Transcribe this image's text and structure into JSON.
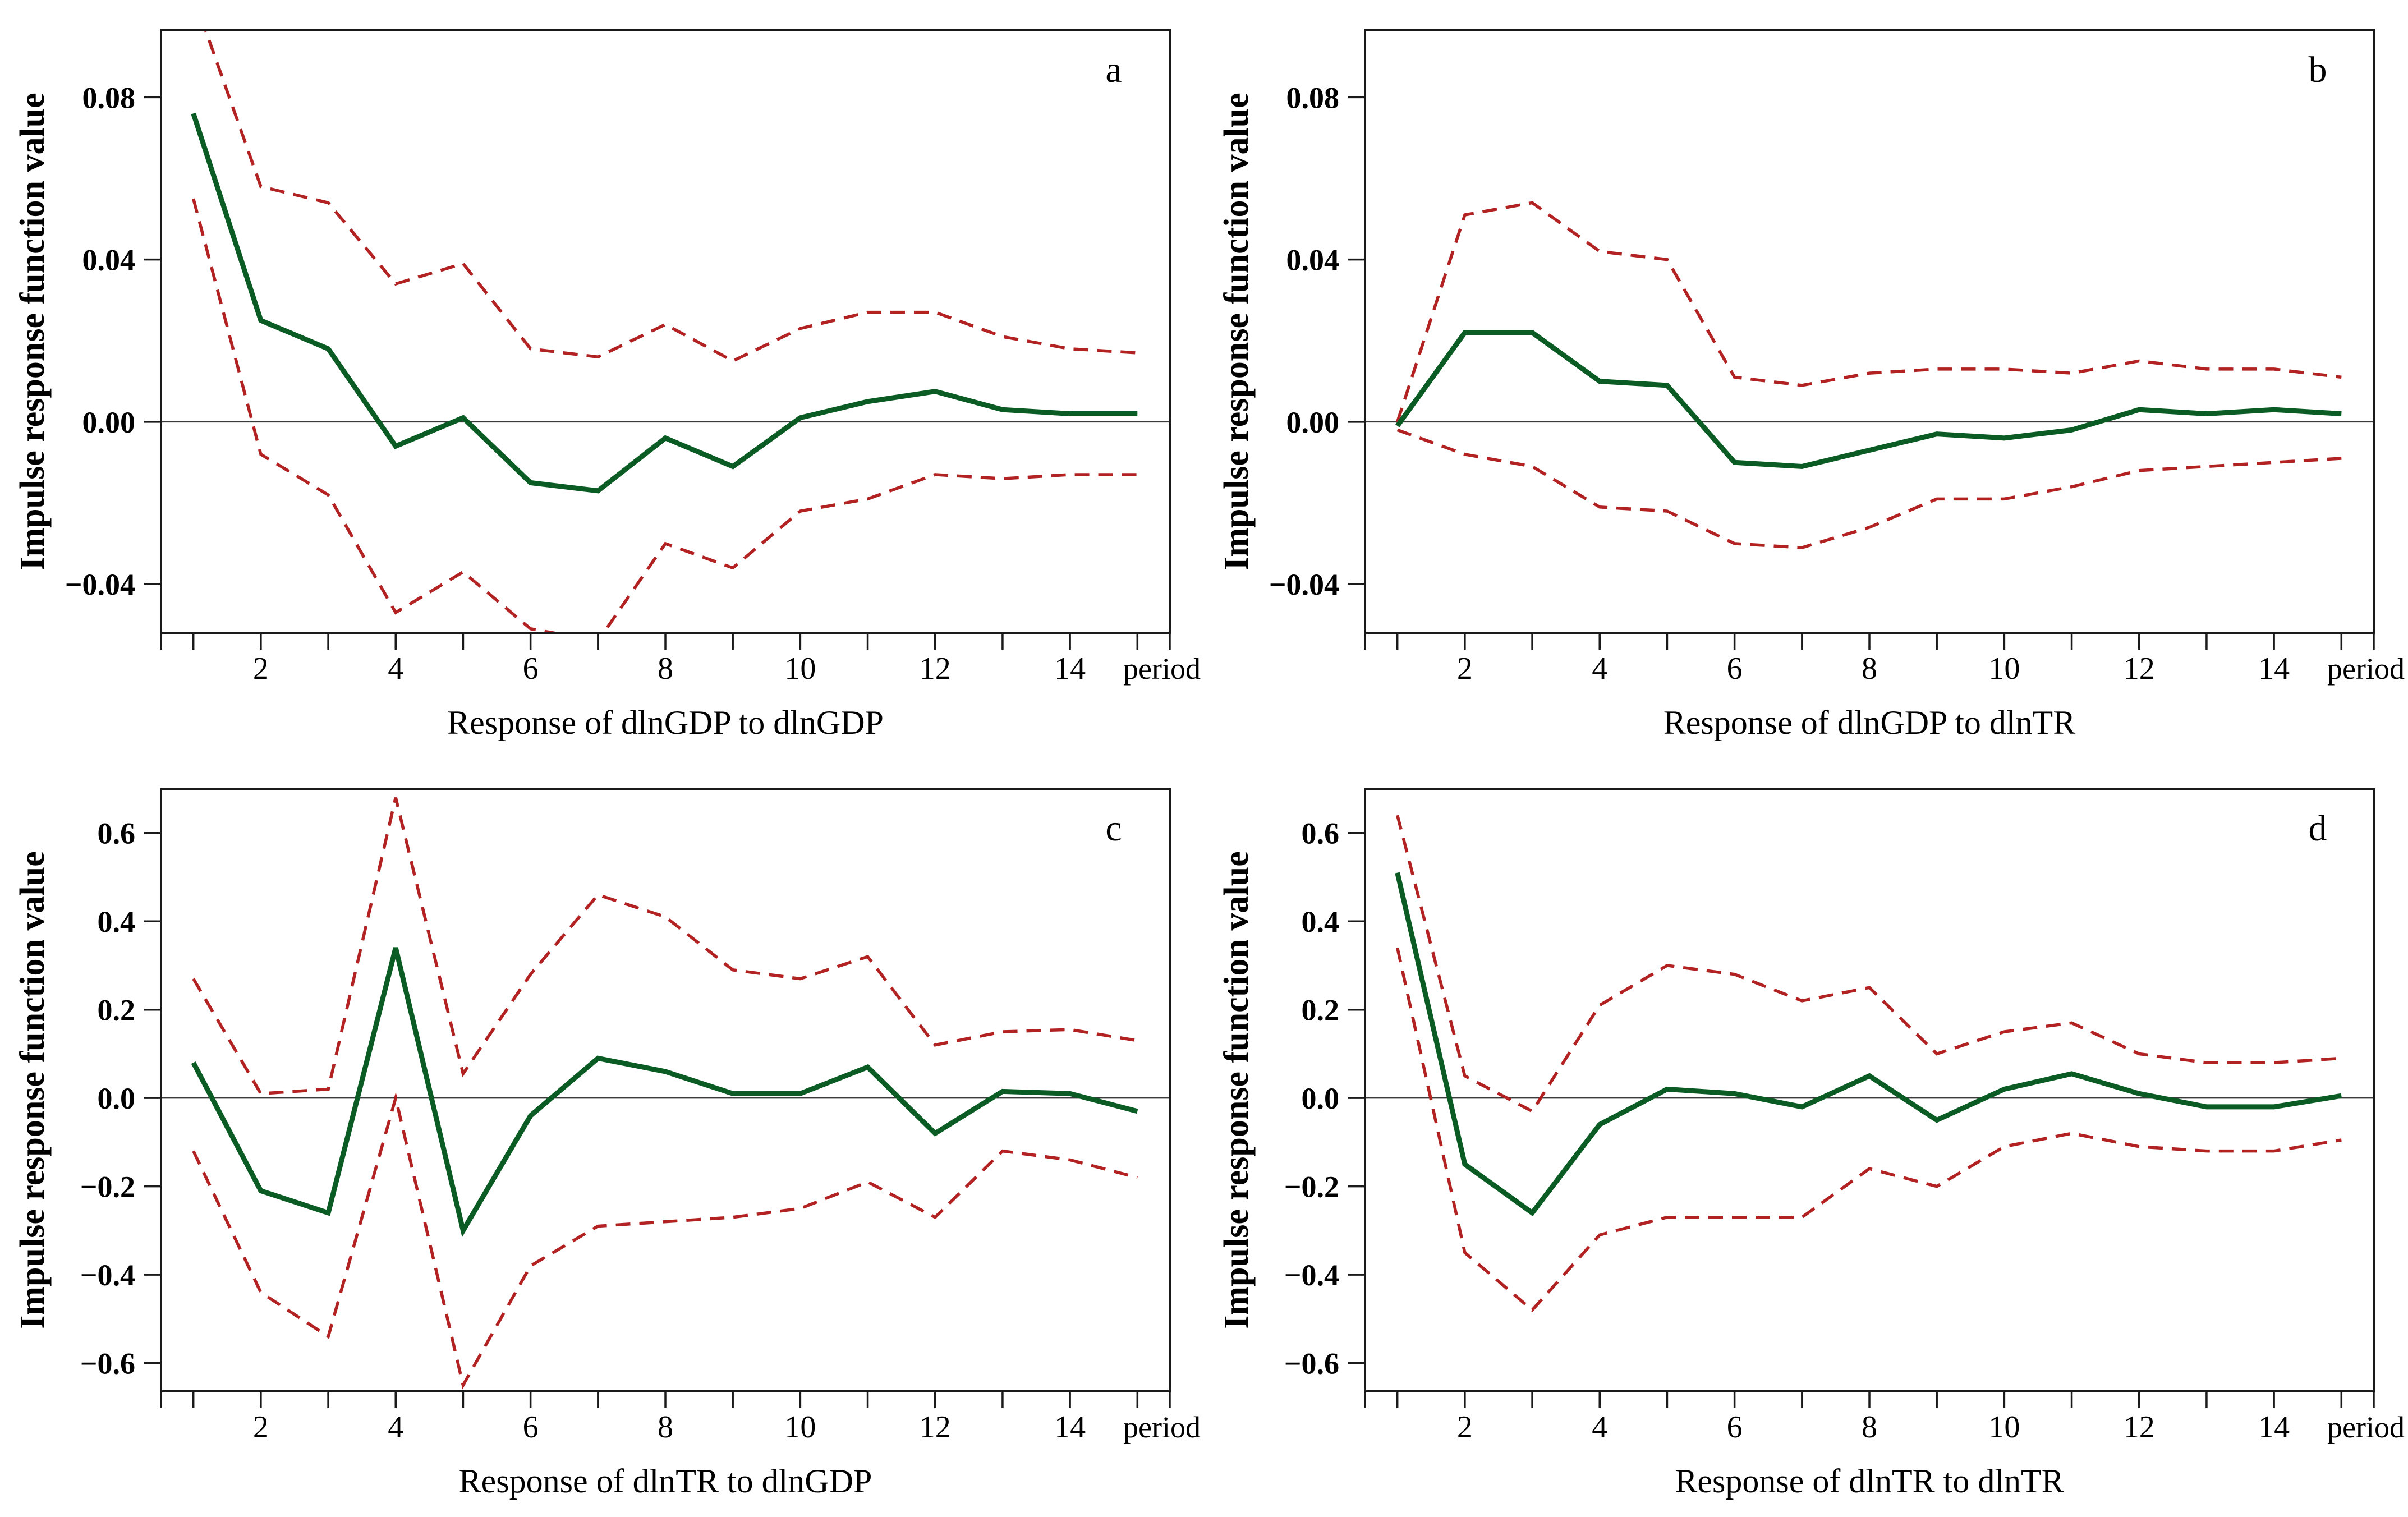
{
  "figure": {
    "y_axis_label": "Impulse response function value",
    "x_axis_unit_label": "period",
    "colors": {
      "irf_line": "#0b5c24",
      "confidence_band_line": "#b22222",
      "zero_line": "#3a3a3a",
      "plot_border": "#1a1a1a",
      "text": "#000000",
      "background": "#ffffff"
    }
  },
  "chart_data": [
    {
      "id": "a",
      "type": "line",
      "panel_label": "a",
      "title": "Response of dlnGDP to dlnGDP",
      "xlabel": "period",
      "ylabel": "Impulse response function value",
      "x": [
        1,
        2,
        3,
        4,
        5,
        6,
        7,
        8,
        9,
        10,
        11,
        12,
        13,
        14,
        15
      ],
      "x_tick_labels": [
        2,
        4,
        6,
        8,
        10,
        12,
        14
      ],
      "xlim": [
        0.52,
        15.48
      ],
      "ylim": [
        -0.052,
        0.0965
      ],
      "y_ticks": [
        0.08,
        0.04,
        0.0,
        -0.04
      ],
      "y_tick_labels": [
        "0.08",
        "0.04",
        "0.00",
        "−0.04"
      ],
      "grid": false,
      "legend": "none",
      "series": [
        {
          "name": "impulse response",
          "style": "solid",
          "values": [
            0.076,
            0.025,
            0.018,
            -0.006,
            0.001,
            -0.015,
            -0.017,
            -0.004,
            -0.011,
            0.001,
            0.005,
            0.0075,
            0.003,
            0.002,
            0.002
          ]
        },
        {
          "name": "upper confidence band",
          "style": "dashed",
          "values": [
            0.105,
            0.058,
            0.054,
            0.034,
            0.039,
            0.018,
            0.016,
            0.024,
            0.015,
            0.023,
            0.027,
            0.027,
            0.021,
            0.018,
            0.017
          ]
        },
        {
          "name": "lower confidence band",
          "style": "dashed",
          "values": [
            0.055,
            -0.008,
            -0.018,
            -0.047,
            -0.037,
            -0.051,
            -0.054,
            -0.03,
            -0.036,
            -0.022,
            -0.019,
            -0.013,
            -0.014,
            -0.013,
            -0.013
          ]
        }
      ]
    },
    {
      "id": "b",
      "type": "line",
      "panel_label": "b",
      "title": "Response of dlnGDP to dlnTR",
      "xlabel": "period",
      "ylabel": "Impulse response function value",
      "x": [
        1,
        2,
        3,
        4,
        5,
        6,
        7,
        8,
        9,
        10,
        11,
        12,
        13,
        14,
        15
      ],
      "x_tick_labels": [
        2,
        4,
        6,
        8,
        10,
        12,
        14
      ],
      "xlim": [
        0.52,
        15.48
      ],
      "ylim": [
        -0.052,
        0.0965
      ],
      "y_ticks": [
        0.08,
        0.04,
        0.0,
        -0.04
      ],
      "y_tick_labels": [
        "0.08",
        "0.04",
        "0.00",
        "−0.04"
      ],
      "grid": false,
      "legend": "none",
      "series": [
        {
          "name": "impulse response",
          "style": "solid",
          "values": [
            -0.001,
            0.022,
            0.022,
            0.01,
            0.009,
            -0.01,
            -0.011,
            -0.007,
            -0.003,
            -0.004,
            -0.002,
            0.003,
            0.002,
            0.003,
            0.002
          ]
        },
        {
          "name": "upper confidence band",
          "style": "dashed",
          "values": [
            0.0,
            0.051,
            0.054,
            0.042,
            0.04,
            0.011,
            0.009,
            0.012,
            0.013,
            0.013,
            0.012,
            0.015,
            0.013,
            0.013,
            0.011
          ]
        },
        {
          "name": "lower confidence band",
          "style": "dashed",
          "values": [
            -0.002,
            -0.008,
            -0.011,
            -0.021,
            -0.022,
            -0.03,
            -0.031,
            -0.026,
            -0.019,
            -0.019,
            -0.016,
            -0.012,
            -0.011,
            -0.01,
            -0.009
          ]
        }
      ]
    },
    {
      "id": "c",
      "type": "line",
      "panel_label": "c",
      "title": "Response of dlnTR to dlnGDP",
      "xlabel": "period",
      "ylabel": "Impulse response function value",
      "x": [
        1,
        2,
        3,
        4,
        5,
        6,
        7,
        8,
        9,
        10,
        11,
        12,
        13,
        14,
        15
      ],
      "x_tick_labels": [
        2,
        4,
        6,
        8,
        10,
        12,
        14
      ],
      "xlim": [
        0.52,
        15.48
      ],
      "ylim": [
        -0.664,
        0.7
      ],
      "y_ticks": [
        0.6,
        0.4,
        0.2,
        0.0,
        -0.2,
        -0.4,
        -0.6
      ],
      "y_tick_labels": [
        "0.6",
        "0.4",
        "0.2",
        "0.0",
        "−0.2",
        "−0.4",
        "−0.6"
      ],
      "grid": false,
      "legend": "none",
      "series": [
        {
          "name": "impulse response",
          "style": "solid",
          "values": [
            0.08,
            -0.21,
            -0.26,
            0.34,
            -0.3,
            -0.04,
            0.09,
            0.06,
            0.01,
            0.01,
            0.07,
            -0.08,
            0.015,
            0.01,
            -0.03
          ]
        },
        {
          "name": "upper confidence band",
          "style": "dashed",
          "values": [
            0.27,
            0.01,
            0.02,
            0.68,
            0.055,
            0.28,
            0.46,
            0.41,
            0.29,
            0.27,
            0.32,
            0.12,
            0.15,
            0.155,
            0.13
          ]
        },
        {
          "name": "lower confidence band",
          "style": "dashed",
          "values": [
            -0.12,
            -0.44,
            -0.54,
            0.0,
            -0.65,
            -0.38,
            -0.29,
            -0.28,
            -0.27,
            -0.25,
            -0.19,
            -0.27,
            -0.12,
            -0.14,
            -0.18
          ]
        }
      ]
    },
    {
      "id": "d",
      "type": "line",
      "panel_label": "d",
      "title": "Response of dlnTR to dlnTR",
      "xlabel": "period",
      "ylabel": "Impulse response function value",
      "x": [
        1,
        2,
        3,
        4,
        5,
        6,
        7,
        8,
        9,
        10,
        11,
        12,
        13,
        14,
        15
      ],
      "x_tick_labels": [
        2,
        4,
        6,
        8,
        10,
        12,
        14
      ],
      "xlim": [
        0.52,
        15.48
      ],
      "ylim": [
        -0.664,
        0.7
      ],
      "y_ticks": [
        0.6,
        0.4,
        0.2,
        0.0,
        -0.2,
        -0.4,
        -0.6
      ],
      "y_tick_labels": [
        "0.6",
        "0.4",
        "0.2",
        "0.0",
        "−0.2",
        "−0.4",
        "−0.6"
      ],
      "grid": false,
      "legend": "none",
      "series": [
        {
          "name": "impulse response",
          "style": "solid",
          "values": [
            0.51,
            -0.15,
            -0.26,
            -0.06,
            0.02,
            0.01,
            -0.02,
            0.05,
            -0.05,
            0.02,
            0.055,
            0.01,
            -0.02,
            -0.02,
            0.005
          ]
        },
        {
          "name": "upper confidence band",
          "style": "dashed",
          "values": [
            0.64,
            0.05,
            -0.03,
            0.21,
            0.3,
            0.28,
            0.22,
            0.25,
            0.1,
            0.15,
            0.17,
            0.1,
            0.08,
            0.08,
            0.09
          ]
        },
        {
          "name": "lower confidence band",
          "style": "dashed",
          "values": [
            0.34,
            -0.35,
            -0.48,
            -0.31,
            -0.27,
            -0.27,
            -0.27,
            -0.16,
            -0.2,
            -0.11,
            -0.08,
            -0.11,
            -0.12,
            -0.12,
            -0.095
          ]
        }
      ]
    }
  ]
}
